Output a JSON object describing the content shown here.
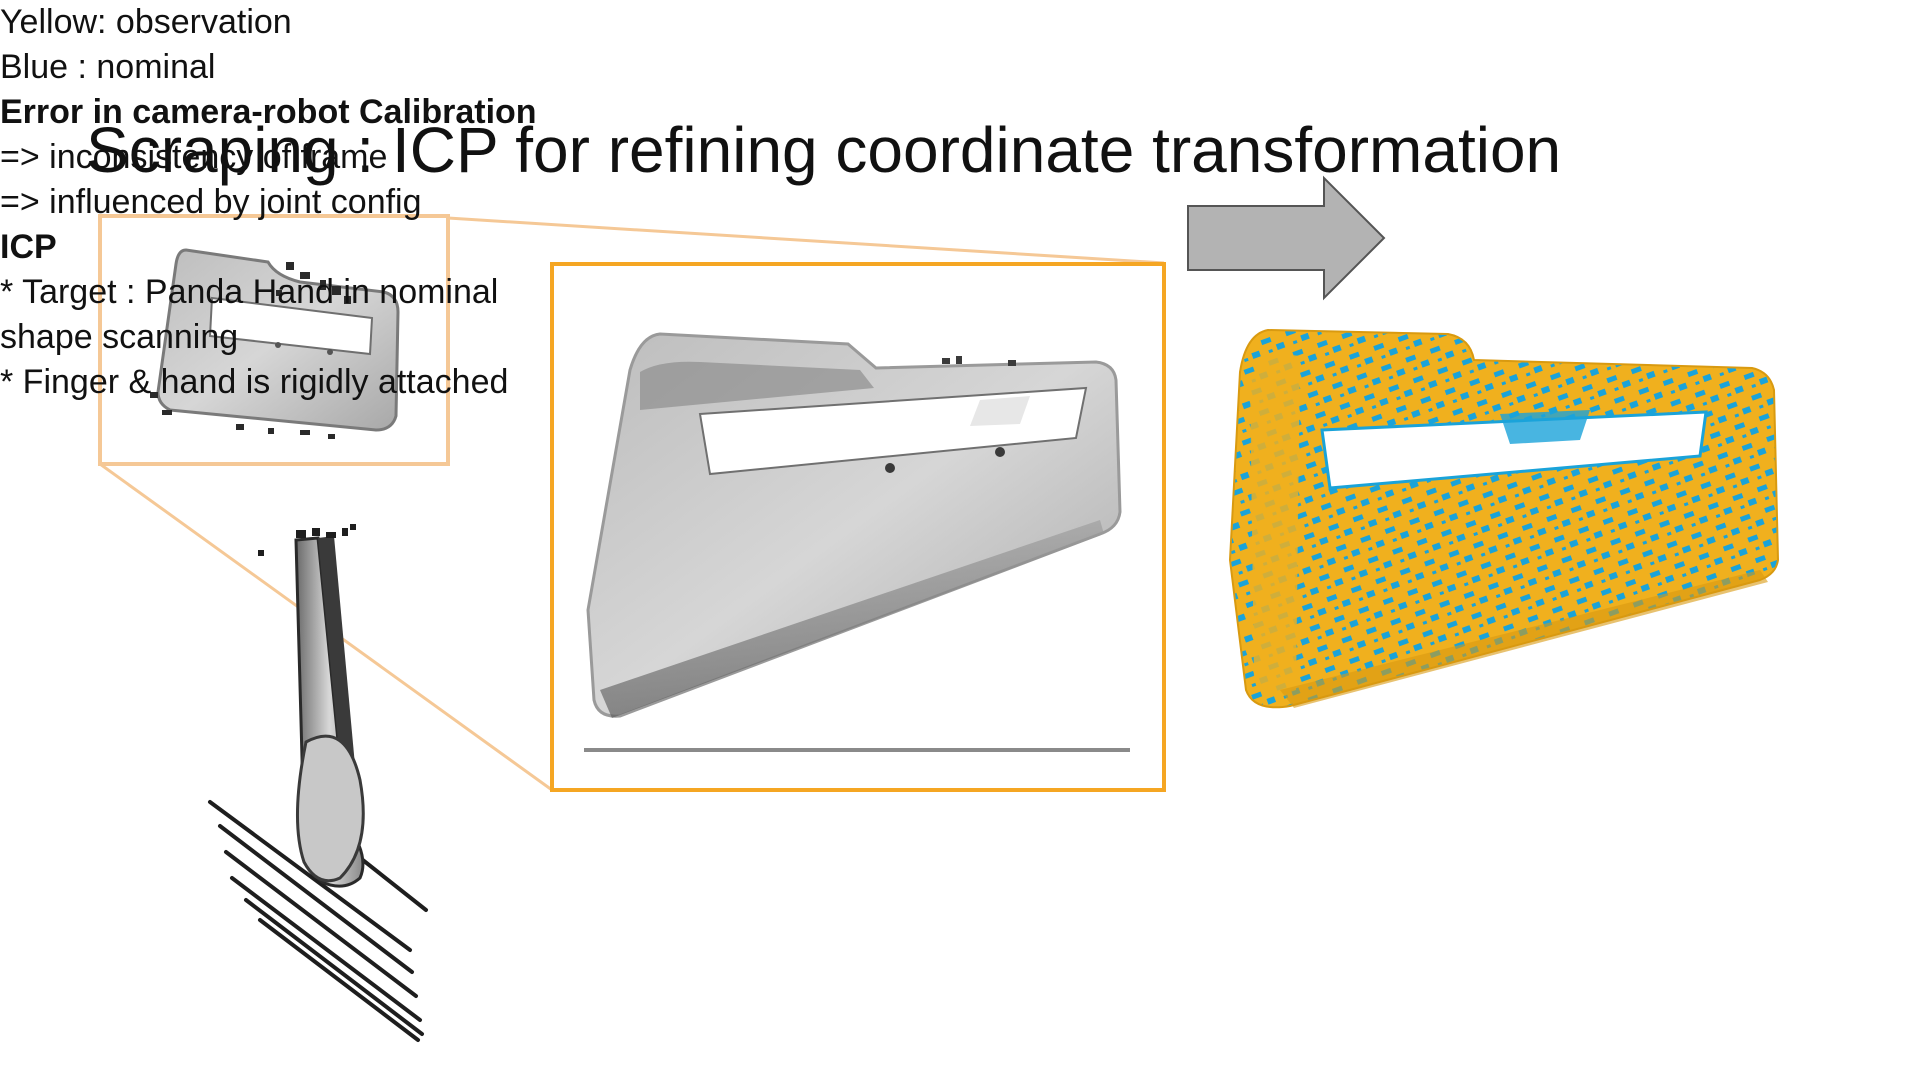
{
  "slide": {
    "title": "Scraping : ICP for refining coordinate transformation"
  },
  "calibration_note": {
    "heading": "Error in camera-robot Calibration",
    "lines": [
      "=> inconsistency of frame",
      "=> influenced by joint config"
    ]
  },
  "icp_note": {
    "heading": "ICP",
    "lines": [
      "* Target : Panda Hand in nominal",
      "shape scanning",
      "* Finger & hand is rigidly attached"
    ]
  },
  "legend": {
    "lines": [
      "Yellow: observation",
      "Blue : nominal"
    ]
  },
  "colors": {
    "highlight_box": "#f5a623",
    "zoom_outline": "#f5c896",
    "arrow": "#b3b3b3",
    "observation": "#f0b01e",
    "nominal": "#1aa3d9"
  },
  "icons": {
    "arrow": "right-arrow-icon"
  }
}
